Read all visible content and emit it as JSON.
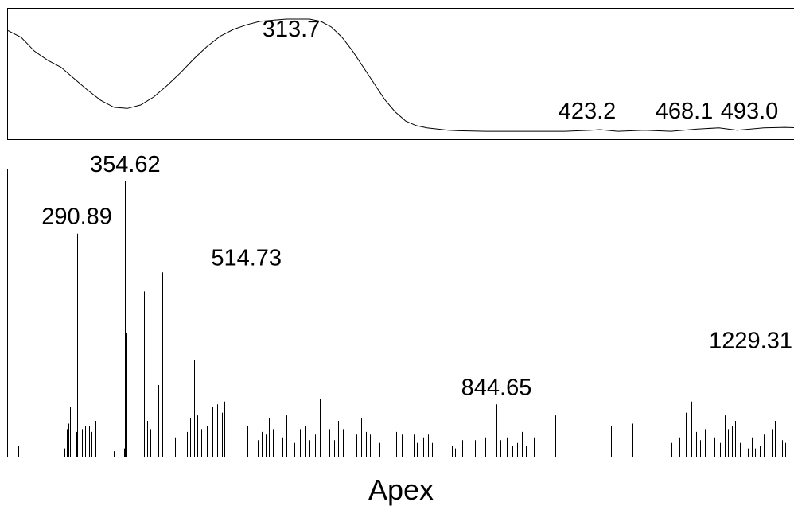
{
  "chart_data": [
    {
      "type": "line",
      "xlim": [
        200,
        500
      ],
      "ylim": [
        0,
        1
      ],
      "grid": false,
      "peak_labels": [
        "313.7",
        "423.2",
        "468.1",
        "493.0"
      ],
      "x": [
        200,
        205,
        210,
        215,
        220,
        225,
        230,
        235,
        240,
        245,
        250,
        255,
        260,
        265,
        270,
        275,
        280,
        285,
        290,
        295,
        300,
        305,
        310,
        313.7,
        318,
        322,
        326,
        330,
        334,
        338,
        342,
        346,
        350,
        354,
        358,
        362,
        366,
        370,
        380,
        390,
        400,
        410,
        420,
        423.2,
        430,
        440,
        450,
        460,
        468.1,
        475,
        485,
        493,
        500
      ],
      "y": [
        0.9,
        0.84,
        0.72,
        0.64,
        0.58,
        0.48,
        0.38,
        0.29,
        0.23,
        0.22,
        0.25,
        0.32,
        0.42,
        0.53,
        0.65,
        0.76,
        0.85,
        0.91,
        0.95,
        0.98,
        0.99,
        1.0,
        1.0,
        1.0,
        0.98,
        0.93,
        0.84,
        0.72,
        0.58,
        0.44,
        0.3,
        0.19,
        0.11,
        0.07,
        0.05,
        0.04,
        0.03,
        0.025,
        0.02,
        0.02,
        0.02,
        0.02,
        0.03,
        0.035,
        0.02,
        0.03,
        0.02,
        0.04,
        0.05,
        0.03,
        0.05,
        0.055,
        0.05
      ]
    },
    {
      "type": "bar",
      "xlabel": "Apex",
      "xlim": [
        200,
        1250
      ],
      "ylim": [
        0,
        100
      ],
      "grid": false,
      "peak_labels": [
        {
          "x": 290.89,
          "label": "290.89"
        },
        {
          "x": 354.62,
          "label": "354.62"
        },
        {
          "x": 514.73,
          "label": "514.73"
        },
        {
          "x": 844.65,
          "label": "844.65"
        },
        {
          "x": 1229.31,
          "label": "1229.31"
        }
      ],
      "peaks": [
        [
          214,
          4
        ],
        [
          227,
          2
        ],
        [
          273,
          11
        ],
        [
          275,
          3
        ],
        [
          278,
          10
        ],
        [
          280,
          12
        ],
        [
          282,
          18
        ],
        [
          284,
          11
        ],
        [
          290,
          9
        ],
        [
          295,
          11
        ],
        [
          298,
          10
        ],
        [
          302,
          11
        ],
        [
          307,
          11
        ],
        [
          310,
          9
        ],
        [
          315,
          13
        ],
        [
          320,
          3
        ],
        [
          325,
          8
        ],
        [
          340,
          2
        ],
        [
          346,
          5
        ],
        [
          353,
          3
        ],
        [
          384,
          13
        ],
        [
          388,
          10
        ],
        [
          392,
          17
        ],
        [
          398,
          26
        ],
        [
          404,
          67
        ],
        [
          412,
          40
        ],
        [
          420,
          7
        ],
        [
          428,
          12
        ],
        [
          436,
          9
        ],
        [
          440,
          14
        ],
        [
          446,
          35
        ],
        [
          450,
          15
        ],
        [
          455,
          10
        ],
        [
          463,
          11
        ],
        [
          470,
          18
        ],
        [
          476,
          19
        ],
        [
          482,
          16
        ],
        [
          486,
          20
        ],
        [
          490,
          34
        ],
        [
          495,
          21
        ],
        [
          499,
          11
        ],
        [
          504,
          5
        ],
        [
          510,
          12
        ],
        [
          516,
          11
        ],
        [
          520,
          3
        ],
        [
          526,
          9
        ],
        [
          530,
          6
        ],
        [
          535,
          9
        ],
        [
          540,
          8
        ],
        [
          544,
          14
        ],
        [
          550,
          10
        ],
        [
          556,
          12
        ],
        [
          562,
          7
        ],
        [
          568,
          15
        ],
        [
          572,
          10
        ],
        [
          578,
          5
        ],
        [
          585,
          10
        ],
        [
          592,
          11
        ],
        [
          598,
          6
        ],
        [
          605,
          8
        ],
        [
          612,
          21
        ],
        [
          618,
          12
        ],
        [
          624,
          10
        ],
        [
          630,
          6
        ],
        [
          636,
          13
        ],
        [
          642,
          10
        ],
        [
          648,
          11
        ],
        [
          654,
          25
        ],
        [
          660,
          8
        ],
        [
          666,
          14
        ],
        [
          672,
          9
        ],
        [
          678,
          8
        ],
        [
          690,
          5
        ],
        [
          705,
          4
        ],
        [
          712,
          9
        ],
        [
          720,
          8
        ],
        [
          735,
          8
        ],
        [
          740,
          5
        ],
        [
          748,
          7
        ],
        [
          754,
          8
        ],
        [
          760,
          5
        ],
        [
          772,
          9
        ],
        [
          778,
          8
        ],
        [
          786,
          4
        ],
        [
          790,
          3
        ],
        [
          800,
          6
        ],
        [
          808,
          4
        ],
        [
          816,
          6
        ],
        [
          824,
          5
        ],
        [
          830,
          7
        ],
        [
          838,
          8
        ],
        [
          844.65,
          19
        ],
        [
          850,
          6
        ],
        [
          858,
          7
        ],
        [
          866,
          4
        ],
        [
          872,
          5
        ],
        [
          878,
          9
        ],
        [
          884,
          4
        ],
        [
          894,
          7
        ],
        [
          922,
          15
        ],
        [
          962,
          7
        ],
        [
          996,
          11
        ],
        [
          1024,
          12
        ],
        [
          1076,
          5
        ],
        [
          1086,
          7
        ],
        [
          1090,
          10
        ],
        [
          1095,
          16
        ],
        [
          1102,
          20
        ],
        [
          1108,
          9
        ],
        [
          1114,
          6
        ],
        [
          1120,
          10
        ],
        [
          1126,
          5
        ],
        [
          1132,
          7
        ],
        [
          1140,
          5
        ],
        [
          1146,
          15
        ],
        [
          1150,
          10
        ],
        [
          1155,
          11
        ],
        [
          1160,
          13
        ],
        [
          1166,
          5
        ],
        [
          1172,
          5
        ],
        [
          1176,
          3
        ],
        [
          1182,
          7
        ],
        [
          1186,
          3
        ],
        [
          1192,
          4
        ],
        [
          1198,
          8
        ],
        [
          1204,
          12
        ],
        [
          1208,
          10
        ],
        [
          1212,
          13
        ],
        [
          1218,
          4
        ],
        [
          1222,
          6
        ],
        [
          1226,
          5
        ],
        [
          1238,
          3
        ],
        [
          1244,
          2
        ],
        [
          290.89,
          81
        ],
        [
          354.62,
          100
        ],
        [
          356,
          45
        ],
        [
          380,
          60
        ],
        [
          514.73,
          66
        ],
        [
          1229.31,
          36
        ]
      ]
    }
  ]
}
